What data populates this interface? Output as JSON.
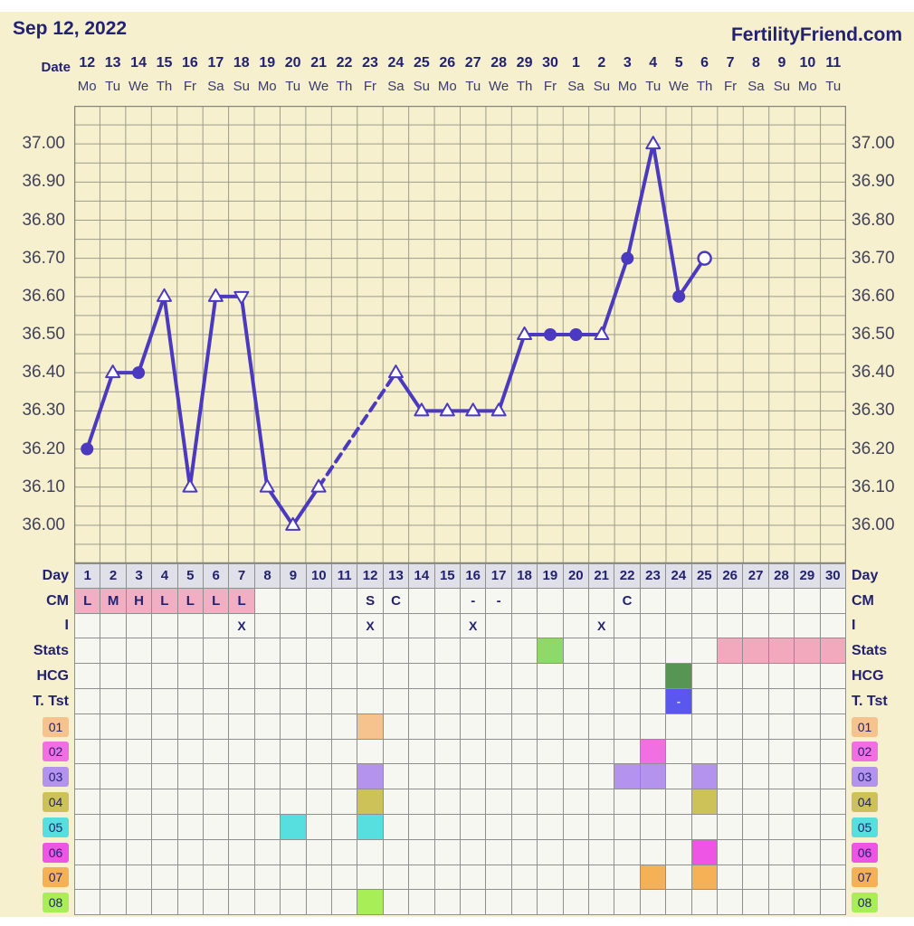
{
  "header": {
    "date": "Sep 12, 2022",
    "brand": "FertilityFriend.com"
  },
  "date_axis": {
    "label": "Date",
    "dates": [
      "12",
      "13",
      "14",
      "15",
      "16",
      "17",
      "18",
      "19",
      "20",
      "21",
      "22",
      "23",
      "24",
      "25",
      "26",
      "27",
      "28",
      "29",
      "30",
      "1",
      "2",
      "3",
      "4",
      "5",
      "6",
      "7",
      "8",
      "9",
      "10",
      "11"
    ],
    "weekdays": [
      "Mo",
      "Tu",
      "We",
      "Th",
      "Fr",
      "Sa",
      "Su",
      "Mo",
      "Tu",
      "We",
      "Th",
      "Fr",
      "Sa",
      "Su",
      "Mo",
      "Tu",
      "We",
      "Th",
      "Fr",
      "Sa",
      "Su",
      "Mo",
      "Tu",
      "We",
      "Th",
      "Fr",
      "Sa",
      "Su",
      "Mo",
      "Tu"
    ]
  },
  "chart_data": {
    "type": "line",
    "title": "Sep 12, 2022",
    "xlabel": "Date",
    "ylabel": "",
    "ylim": [
      35.9,
      37.1
    ],
    "grid": true,
    "y_ticks": [
      "37.00",
      "36.90",
      "36.80",
      "36.70",
      "36.60",
      "36.50",
      "36.40",
      "36.30",
      "36.20",
      "36.10",
      "36.00"
    ],
    "days": [
      1,
      2,
      3,
      4,
      5,
      6,
      7,
      8,
      9,
      10,
      11,
      12,
      13,
      14,
      15,
      16,
      17,
      18,
      19,
      20,
      21,
      22,
      23,
      24,
      25,
      26,
      27,
      28,
      29,
      30
    ],
    "series": [
      {
        "name": "temperature",
        "values": [
          36.2,
          36.4,
          36.4,
          36.6,
          36.1,
          36.6,
          36.6,
          36.1,
          36.0,
          36.1,
          null,
          null,
          36.4,
          36.3,
          36.3,
          36.3,
          36.3,
          36.5,
          36.5,
          36.5,
          36.5,
          36.7,
          37.0,
          36.6,
          36.7,
          null,
          null,
          null,
          null,
          null
        ]
      }
    ],
    "markers": [
      "circle-filled",
      "triangle-open",
      "circle-filled",
      "triangle-open",
      "triangle-open",
      "triangle-open",
      "triangle-down-open",
      "triangle-open",
      "triangle-open",
      "triangle-open",
      null,
      null,
      "triangle-open",
      "triangle-open",
      "triangle-open",
      "triangle-open",
      "triangle-open",
      "triangle-open",
      "circle-filled",
      "circle-filled",
      "triangle-open",
      "circle-filled",
      "triangle-open",
      "circle-filled",
      "circle-open",
      null,
      null,
      null,
      null,
      null
    ],
    "dashed_gap_segments": [
      [
        10,
        13
      ]
    ],
    "line_color": "#4b3abf"
  },
  "table": {
    "day_row": {
      "label": "Day",
      "days": [
        "1",
        "2",
        "3",
        "4",
        "5",
        "6",
        "7",
        "8",
        "9",
        "10",
        "11",
        "12",
        "13",
        "14",
        "15",
        "16",
        "17",
        "18",
        "19",
        "20",
        "21",
        "22",
        "23",
        "24",
        "25",
        "26",
        "27",
        "28",
        "29",
        "30"
      ]
    },
    "cm_row": {
      "label": "CM",
      "highlight_days": [
        1,
        2,
        3,
        4,
        5,
        6,
        7
      ],
      "highlight_color": "#f2aec2",
      "entries": {
        "1": "L",
        "2": "M",
        "3": "H",
        "4": "L",
        "5": "L",
        "6": "L",
        "7": "L",
        "12": "S",
        "13": "C",
        "16": "-",
        "17": "-",
        "22": "C"
      }
    },
    "i_row": {
      "label": "I",
      "mark": "X",
      "mark_days": [
        7,
        12,
        16,
        21
      ]
    },
    "stats_row": {
      "label": "Stats",
      "cells": [
        {
          "day": 19,
          "color": "#8fd96b"
        },
        {
          "day": 26,
          "color": "#f2a9be"
        },
        {
          "day": 27,
          "color": "#f2a9be"
        },
        {
          "day": 28,
          "color": "#f2a9be"
        },
        {
          "day": 29,
          "color": "#f2a9be"
        },
        {
          "day": 30,
          "color": "#f2a9be"
        }
      ]
    },
    "hcg_row": {
      "label": "HCG",
      "cells": [
        {
          "day": 24,
          "color": "#579554"
        }
      ]
    },
    "ttst_row": {
      "label": "T. Tst",
      "cells": [
        {
          "day": 24,
          "color": "#5a57ee",
          "text": "-",
          "text_color": "#d8deff"
        }
      ]
    },
    "custom_rows": [
      {
        "id": "01",
        "color": "#f6c28e",
        "cell_days": [
          12
        ]
      },
      {
        "id": "02",
        "color": "#f26fe3",
        "cell_days": [
          23
        ]
      },
      {
        "id": "03",
        "color": "#b393ee",
        "cell_days": [
          12,
          22,
          23,
          25
        ]
      },
      {
        "id": "04",
        "color": "#cdc257",
        "cell_days": [
          12,
          25
        ]
      },
      {
        "id": "05",
        "color": "#57dede",
        "cell_days": [
          9,
          12
        ]
      },
      {
        "id": "06",
        "color": "#ee55e4",
        "cell_days": [
          25
        ]
      },
      {
        "id": "07",
        "color": "#f6b157",
        "cell_days": [
          23,
          25
        ]
      },
      {
        "id": "08",
        "color": "#a7ee57",
        "cell_days": [
          12
        ]
      }
    ]
  },
  "colors": {
    "page_background": "#f6f0cf",
    "grid_line": "#9c9c8a",
    "grid_border": "#85857a",
    "table_border": "#8f8f8f",
    "cell_background": "#f7f7f2",
    "day_row_background": "#e0e0e9",
    "navy_text": "#232270"
  }
}
